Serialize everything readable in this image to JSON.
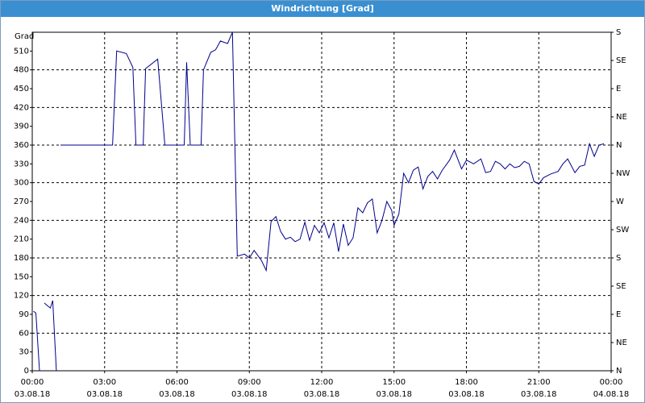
{
  "chart_data": {
    "type": "line",
    "title": "Windrichtung [Grad]",
    "y_label": "Grad",
    "xlim": [
      0,
      24
    ],
    "ylim": [
      0,
      540
    ],
    "y2lim": [
      0,
      540
    ],
    "xticks": [
      {
        "value": 0,
        "label": "00:00",
        "date": "03.08.18"
      },
      {
        "value": 3,
        "label": "03:00",
        "date": "03.08.18"
      },
      {
        "value": 6,
        "label": "06:00",
        "date": "03.08.18"
      },
      {
        "value": 9,
        "label": "09:00",
        "date": "03.08.18"
      },
      {
        "value": 12,
        "label": "12:00",
        "date": "03.08.18"
      },
      {
        "value": 15,
        "label": "15:00",
        "date": "03.08.18"
      },
      {
        "value": 18,
        "label": "18:00",
        "date": "03.08.18"
      },
      {
        "value": 21,
        "label": "21:00",
        "date": "03.08.18"
      },
      {
        "value": 24,
        "label": "00:00",
        "date": "04.08.18"
      }
    ],
    "yticks": [
      0,
      30,
      60,
      90,
      120,
      150,
      180,
      210,
      240,
      270,
      300,
      330,
      360,
      390,
      420,
      450,
      480,
      510
    ],
    "y2ticks": [
      {
        "value": 0,
        "label": "N"
      },
      {
        "value": 45,
        "label": "NE"
      },
      {
        "value": 90,
        "label": "E"
      },
      {
        "value": 135,
        "label": "SE"
      },
      {
        "value": 180,
        "label": "S"
      },
      {
        "value": 225,
        "label": "SW"
      },
      {
        "value": 270,
        "label": "W"
      },
      {
        "value": 315,
        "label": "NW"
      },
      {
        "value": 360,
        "label": "N"
      },
      {
        "value": 405,
        "label": "NE"
      },
      {
        "value": 450,
        "label": "E"
      },
      {
        "value": 495,
        "label": "SE"
      },
      {
        "value": 540,
        "label": "S"
      }
    ],
    "grid": true,
    "x": [
      0.05,
      0.15,
      0.3,
      0.4,
      0.5,
      0.75,
      0.85,
      1.0,
      1.08,
      1.17,
      3.33,
      3.5,
      3.9,
      4.17,
      4.3,
      4.6,
      4.7,
      5.2,
      5.5,
      6.3,
      6.4,
      6.55,
      7.0,
      7.1,
      7.4,
      7.6,
      7.8,
      8.1,
      8.3,
      8.5,
      8.8,
      9.0,
      9.2,
      9.5,
      9.7,
      9.9,
      10.1,
      10.3,
      10.5,
      10.7,
      10.9,
      11.1,
      11.3,
      11.5,
      11.7,
      11.9,
      12.1,
      12.3,
      12.5,
      12.7,
      12.9,
      13.1,
      13.3,
      13.5,
      13.7,
      13.9,
      14.1,
      14.3,
      14.5,
      14.7,
      14.9,
      15.0,
      15.2,
      15.4,
      15.6,
      15.8,
      16.0,
      16.2,
      16.4,
      16.6,
      16.8,
      17.0,
      17.3,
      17.5,
      17.8,
      18.0,
      18.3,
      18.6,
      18.8,
      19.0,
      19.2,
      19.4,
      19.6,
      19.8,
      20.0,
      20.2,
      20.4,
      20.6,
      20.8,
      21.0,
      21.2,
      21.5,
      21.8,
      22.0,
      22.2,
      22.5,
      22.7,
      22.9,
      23.1,
      23.3,
      23.5,
      23.7
    ],
    "series": [
      {
        "name": "Windrichtung",
        "color": "#00008b",
        "values": [
          95,
          92,
          0,
          null,
          108,
          100,
          112,
          0,
          null,
          360,
          360,
          510,
          506,
          484,
          360,
          360,
          482,
          497,
          360,
          360,
          492,
          360,
          360,
          480,
          508,
          512,
          526,
          522,
          540,
          183,
          186,
          180,
          192,
          176,
          160,
          238,
          246,
          222,
          210,
          213,
          206,
          210,
          237,
          208,
          232,
          220,
          236,
          212,
          236,
          190,
          234,
          200,
          212,
          260,
          252,
          268,
          274,
          220,
          240,
          270,
          256,
          232,
          250,
          315,
          300,
          320,
          325,
          290,
          310,
          318,
          306,
          320,
          336,
          352,
          322,
          336,
          330,
          338,
          316,
          318,
          334,
          330,
          322,
          330,
          324,
          326,
          334,
          330,
          302,
          298,
          308,
          314,
          318,
          330,
          338,
          316,
          326,
          328,
          362,
          342,
          360,
          362
        ]
      }
    ]
  }
}
